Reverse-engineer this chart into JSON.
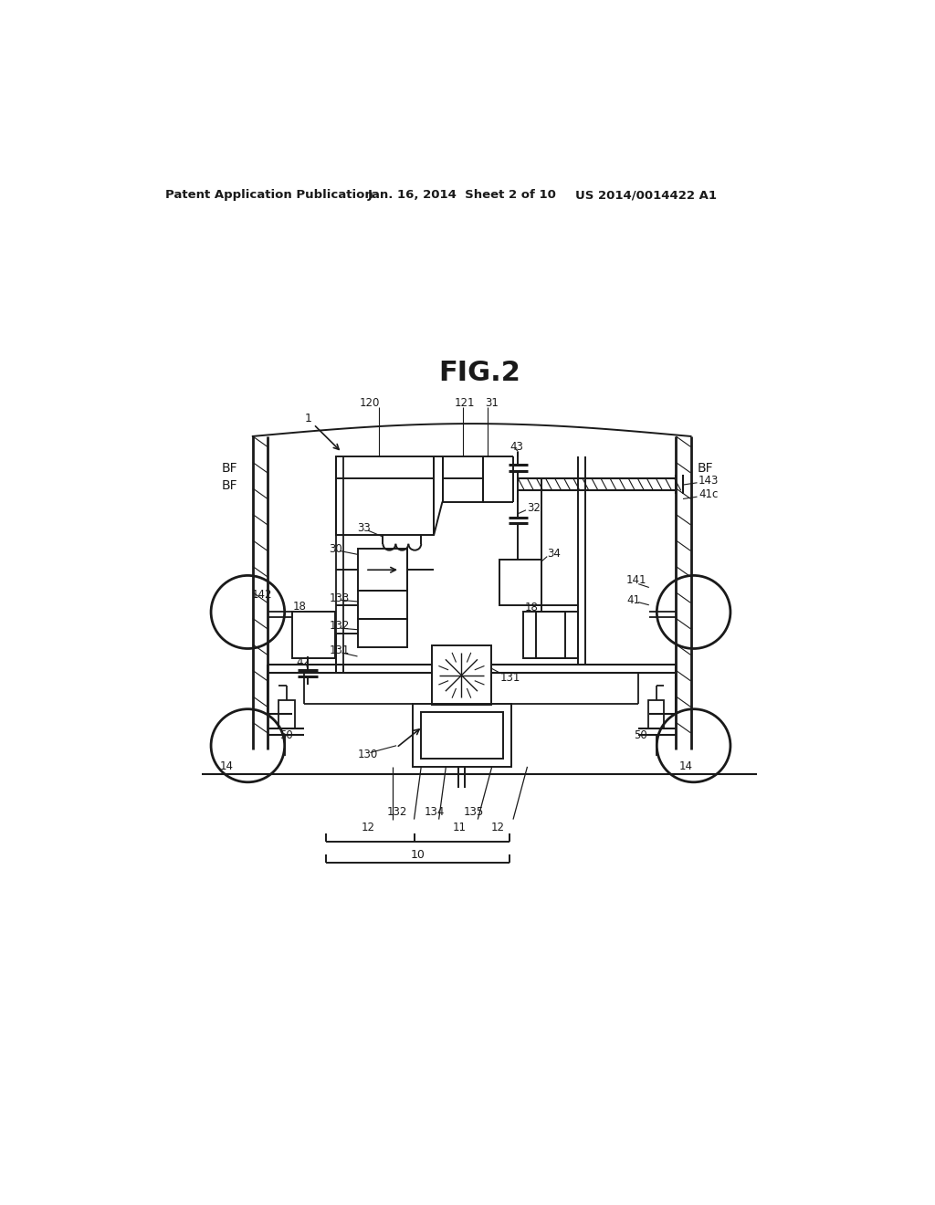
{
  "bg_color": "#ffffff",
  "header_left": "Patent Application Publication",
  "header_mid": "Jan. 16, 2014  Sheet 2 of 10",
  "header_right": "US 2014/0014422 A1",
  "fig_title": "FIG.2",
  "line_color": "#1a1a1a",
  "lw": 1.4
}
